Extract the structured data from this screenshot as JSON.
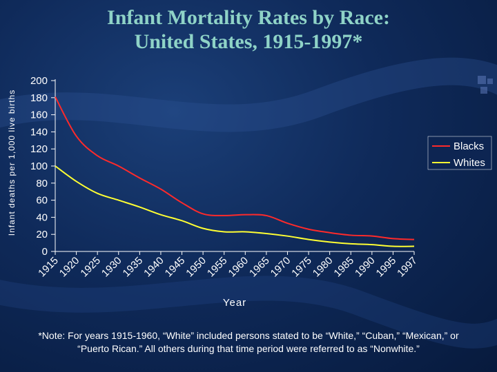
{
  "slide": {
    "title_line1": "Infant Mortality Rates by Race:",
    "title_line2": "United States, 1915-1997*",
    "note": "*Note:  For years 1915-1960, “White” included persons stated to be “White,” “Cuban,” “Mexican,” or “Puerto Rican.” All others during that time period were referred to as “Nonwhite.”"
  },
  "chart_data": {
    "type": "line",
    "title": "",
    "xlabel": "Year",
    "ylabel": "Infant deaths per 1,000 live births",
    "ylim": [
      0,
      200
    ],
    "yticks": [
      0,
      20,
      40,
      60,
      80,
      100,
      120,
      140,
      160,
      180,
      200
    ],
    "x": [
      "1915",
      "1920",
      "1925",
      "1930",
      "1935",
      "1940",
      "1945",
      "1950",
      "1955",
      "1960",
      "1965",
      "1970",
      "1975",
      "1980",
      "1985",
      "1990",
      "1995",
      "1997"
    ],
    "series": [
      {
        "name": "Blacks",
        "color": "#ff2a2a",
        "values": [
          181,
          135,
          112,
          100,
          86,
          73,
          57,
          44,
          42,
          43,
          42,
          33,
          26,
          22,
          19,
          18,
          15,
          14
        ]
      },
      {
        "name": "Whites",
        "color": "#ffff33",
        "values": [
          100,
          82,
          68,
          60,
          52,
          43,
          36,
          27,
          23,
          23,
          21,
          18,
          14,
          11,
          9,
          8,
          6,
          6
        ]
      }
    ],
    "legend_position": "right",
    "grid": false
  }
}
